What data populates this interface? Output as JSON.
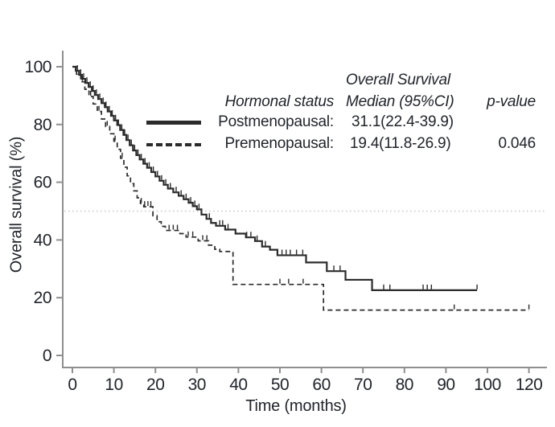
{
  "figure": {
    "y_axis_label": "Overall survival (%)",
    "x_axis_label": "Time (months)"
  },
  "legend": {
    "col_group_header": "Overall Survival",
    "col1_header": "Hormonal status",
    "col2_header": "Median (95%CI)",
    "col3_header": "p-value",
    "rows": [
      {
        "label": "Postmenopausal:",
        "median_ci": "31.1(22.4-39.9)",
        "p_value": "",
        "line_style": "solid"
      },
      {
        "label": "Premenopausal:",
        "median_ci": "19.4(11.8-26.9)",
        "p_value": "0.046",
        "line_style": "dashed"
      }
    ]
  },
  "colors": {
    "curve": "#2b2b2b",
    "axis": "#8f8f8f",
    "text": "#21242b",
    "reference_line": "#c6c6c6"
  },
  "chart_data": {
    "type": "line",
    "subtype": "kaplan-meier-step",
    "title": "",
    "xlabel": "Time (months)",
    "ylabel": "Overall survival (%)",
    "xlim": [
      0,
      120
    ],
    "ylim": [
      0,
      100
    ],
    "x_ticks": [
      0,
      10,
      20,
      30,
      40,
      50,
      60,
      70,
      80,
      90,
      100,
      120
    ],
    "y_ticks": [
      0,
      20,
      40,
      60,
      80,
      100
    ],
    "reference_line_y": 50,
    "grid": false,
    "legend_position": "top-right",
    "series": [
      {
        "name": "Postmenopausal",
        "style": "solid",
        "median_months": 31.1,
        "ci_95": "22.4-39.9",
        "p_value": null,
        "points": [
          [
            0,
            100
          ],
          [
            0.8,
            98.6
          ],
          [
            1.6,
            97.2
          ],
          [
            2.3,
            95.8
          ],
          [
            3.1,
            94.4
          ],
          [
            3.9,
            93
          ],
          [
            4.7,
            91.6
          ],
          [
            5.4,
            90.2
          ],
          [
            6.2,
            88.8
          ],
          [
            7,
            87.4
          ],
          [
            7.8,
            86
          ],
          [
            8.5,
            84.5
          ],
          [
            9.3,
            83
          ],
          [
            10,
            81.4
          ],
          [
            10.8,
            79.8
          ],
          [
            11.5,
            78.1
          ],
          [
            12.3,
            76.4
          ],
          [
            13,
            74.6
          ],
          [
            13.8,
            72.8
          ],
          [
            14.6,
            71
          ],
          [
            15.4,
            69.4
          ],
          [
            16.2,
            67.9
          ],
          [
            17.1,
            66.4
          ],
          [
            18,
            65
          ],
          [
            19,
            63.5
          ],
          [
            20,
            62
          ],
          [
            21,
            60.5
          ],
          [
            22,
            59.1
          ],
          [
            23,
            57.8
          ],
          [
            24.3,
            56.5
          ],
          [
            25.6,
            55.3
          ],
          [
            26.8,
            54.1
          ],
          [
            28,
            52.9
          ],
          [
            29,
            51.7
          ],
          [
            30,
            50.6
          ],
          [
            31.1,
            48.8
          ],
          [
            32.3,
            47.3
          ],
          [
            33.4,
            45.9
          ],
          [
            34.6,
            44.9
          ],
          [
            36.8,
            43.6
          ],
          [
            39.3,
            42.2
          ],
          [
            41.8,
            40.9
          ],
          [
            44,
            39.6
          ],
          [
            45.7,
            37.7
          ],
          [
            47.6,
            36.6
          ],
          [
            49.4,
            34.7
          ],
          [
            56.3,
            32.2
          ],
          [
            61.3,
            29.2
          ],
          [
            65.8,
            26.2
          ],
          [
            72.2,
            22.6
          ],
          [
            97.5,
            22.6
          ]
        ],
        "censor_times": [
          1.2,
          2,
          2.7,
          3.5,
          4.3,
          5,
          5.8,
          6.6,
          7.4,
          8.1,
          8.9,
          9.6,
          10.4,
          11.1,
          11.9,
          12.6,
          13.4,
          14.2,
          15,
          15.8,
          16.6,
          17.5,
          18.5,
          19.5,
          20.5,
          21.5,
          22.5,
          23.6,
          25,
          26.2,
          27.4,
          28.5,
          29.5,
          30.5,
          33,
          35.5,
          36.2,
          37.5,
          42,
          43,
          44.5,
          46.5,
          50.5,
          51.5,
          52.5,
          54,
          55.5,
          63,
          64.5,
          75,
          76.5,
          84.5,
          85.5,
          86.5,
          97.5
        ]
      },
      {
        "name": "Premenopausal",
        "style": "dashed",
        "median_months": 19.4,
        "ci_95": "11.8-26.9",
        "p_value": 0.046,
        "points": [
          [
            0,
            100
          ],
          [
            1,
            97.4
          ],
          [
            2,
            94.8
          ],
          [
            3,
            92.2
          ],
          [
            4,
            89.7
          ],
          [
            5,
            87.1
          ],
          [
            6,
            84.5
          ],
          [
            7,
            81.9
          ],
          [
            8,
            79.3
          ],
          [
            9,
            76.8
          ],
          [
            10,
            74.2
          ],
          [
            10.8,
            71.4
          ],
          [
            11.6,
            68.3
          ],
          [
            12.4,
            65.2
          ],
          [
            13.2,
            62.2
          ],
          [
            14,
            59.5
          ],
          [
            14.8,
            57
          ],
          [
            15.6,
            54.6
          ],
          [
            16.4,
            52.6
          ],
          [
            17.2,
            51.5
          ],
          [
            19.4,
            48.4
          ],
          [
            20.4,
            46.3
          ],
          [
            21.4,
            44.7
          ],
          [
            22.4,
            43.3
          ],
          [
            25.9,
            42.2
          ],
          [
            27.4,
            41
          ],
          [
            30.3,
            39.7
          ],
          [
            32.8,
            38.2
          ],
          [
            34.3,
            36.8
          ],
          [
            35.5,
            36
          ],
          [
            38.7,
            24.6
          ],
          [
            60.5,
            15.7
          ],
          [
            120,
            15.7
          ]
        ],
        "censor_times": [
          2.4,
          4.4,
          6.4,
          8.4,
          10.3,
          12,
          16.6,
          17.4,
          18.2,
          18.9,
          23.3,
          24.3,
          25.3,
          27.9,
          29,
          31.4,
          32.4,
          50,
          52.1,
          55.6,
          92,
          120
        ]
      }
    ]
  }
}
